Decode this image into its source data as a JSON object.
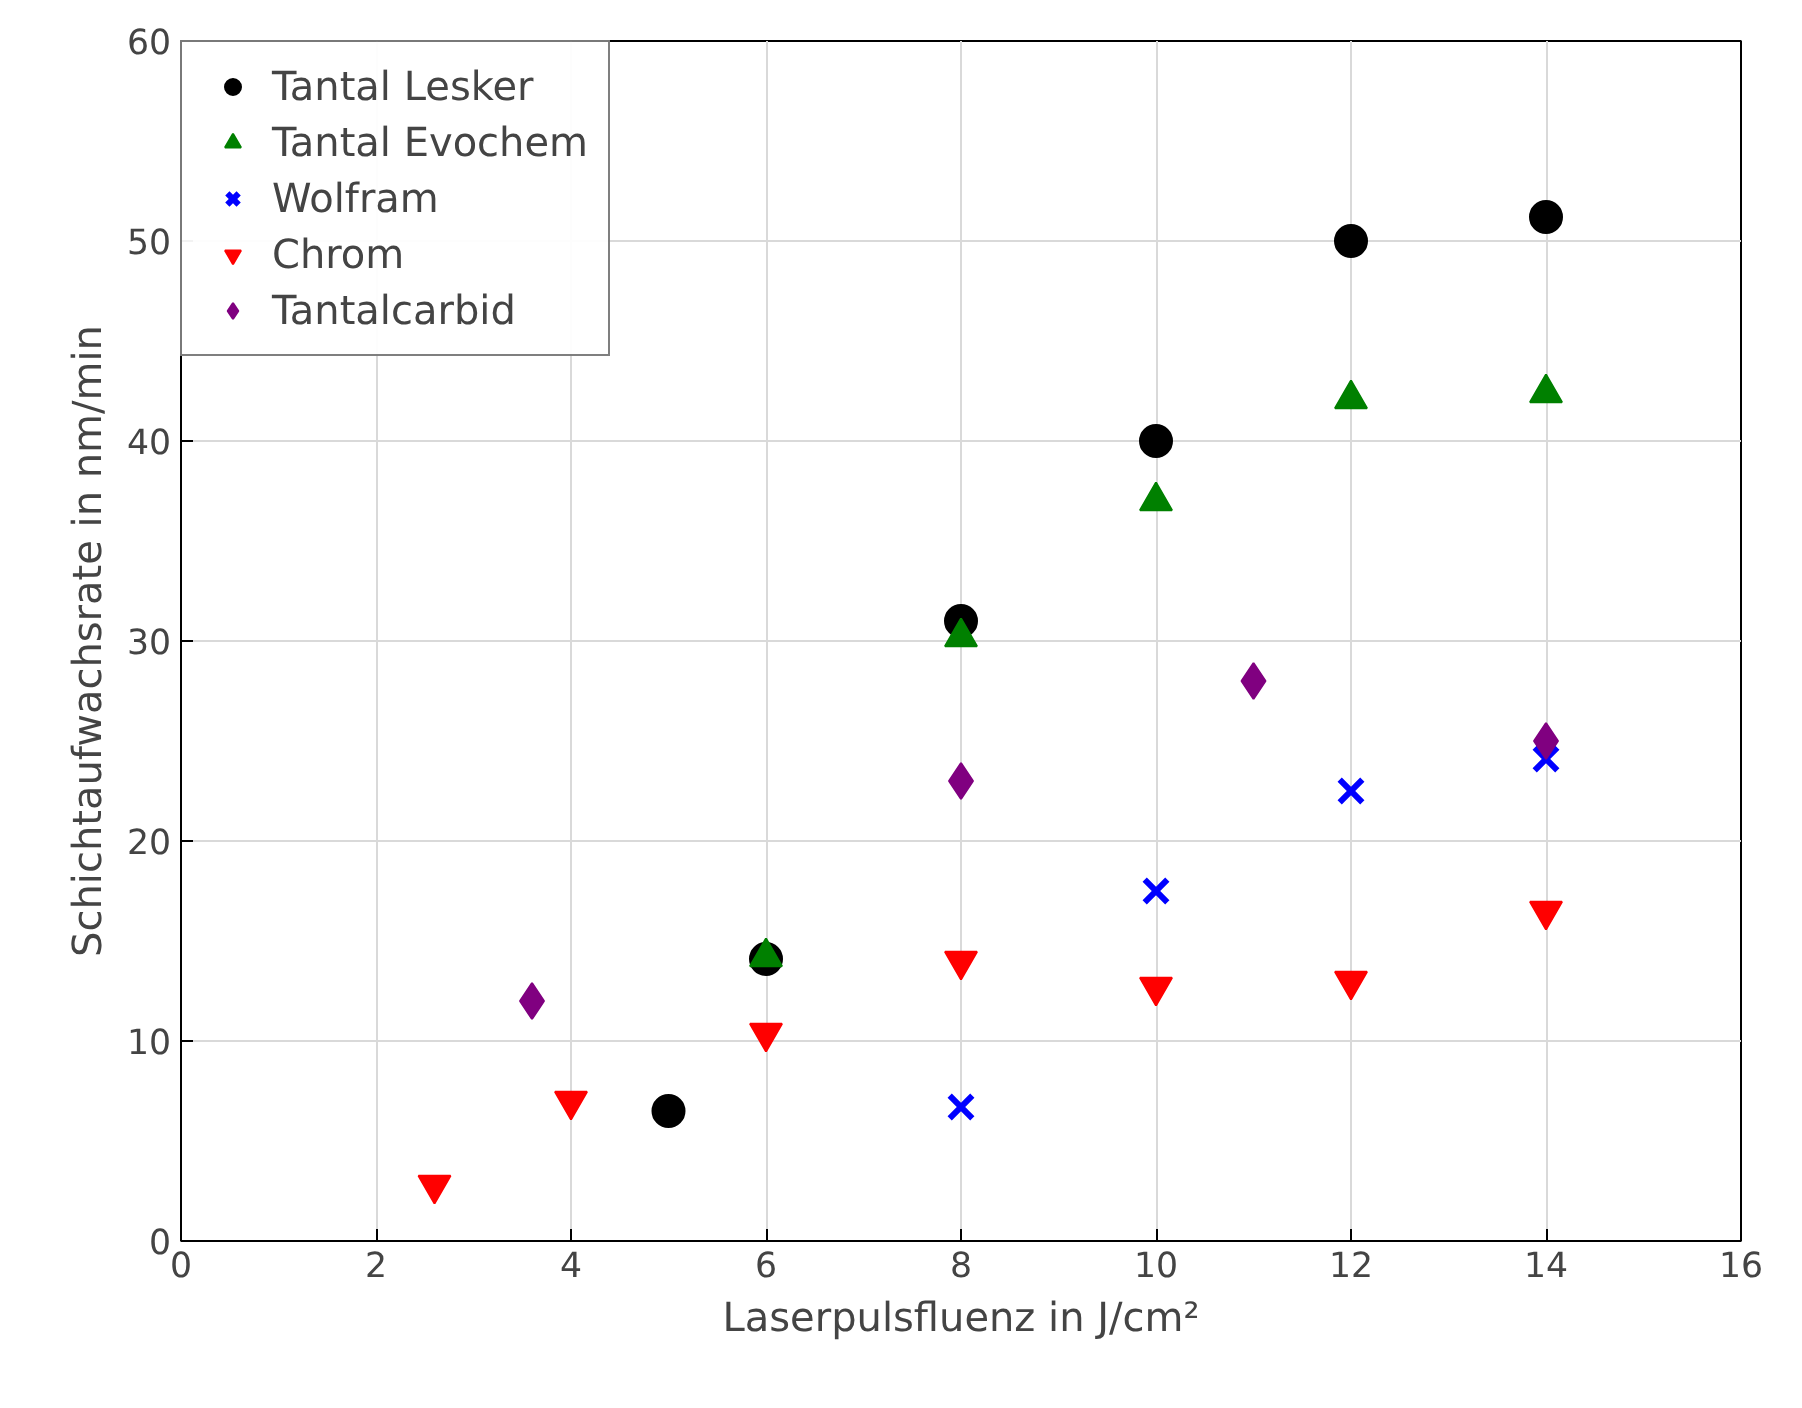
{
  "chart_data": {
    "type": "scatter",
    "xlabel": "Laserpulsfluenz in J/cm²",
    "ylabel": "Schichtaufwachsrate in nm/min",
    "xlim": [
      0,
      16
    ],
    "ylim": [
      0,
      60
    ],
    "xticks": [
      0,
      2,
      4,
      6,
      8,
      10,
      12,
      14,
      16
    ],
    "yticks": [
      0,
      10,
      20,
      30,
      40,
      50,
      60
    ],
    "grid": true,
    "legend": "top left",
    "series": [
      {
        "name": "Tantal Lesker",
        "color": "#000000",
        "marker": "circle",
        "x": [
          5,
          6,
          8,
          10,
          12,
          14
        ],
        "values": [
          6.5,
          14.1,
          31,
          40,
          50,
          51.2
        ]
      },
      {
        "name": "Tantal Evochem",
        "color": "#008000",
        "marker": "triangle",
        "x": [
          6,
          8,
          10,
          12,
          14
        ],
        "values": [
          14.2,
          30.2,
          37,
          42.1,
          42.4
        ]
      },
      {
        "name": "Wolfram",
        "color": "#0000ff",
        "marker": "cross",
        "x": [
          8,
          10,
          12,
          14
        ],
        "values": [
          6.7,
          17.5,
          22.5,
          24.1
        ]
      },
      {
        "name": "Chrom",
        "color": "#ff0000",
        "x": [
          2.6,
          4,
          6,
          8,
          10,
          12,
          14
        ],
        "values": [
          2.8,
          7,
          10.4,
          14,
          12.7,
          13,
          16.5
        ]
      },
      {
        "name": "Tantalcarbid",
        "color": "#800080",
        "marker": "diamond",
        "x": [
          3.6,
          8,
          11,
          14
        ],
        "values": [
          12,
          23,
          28,
          25
        ]
      }
    ]
  }
}
